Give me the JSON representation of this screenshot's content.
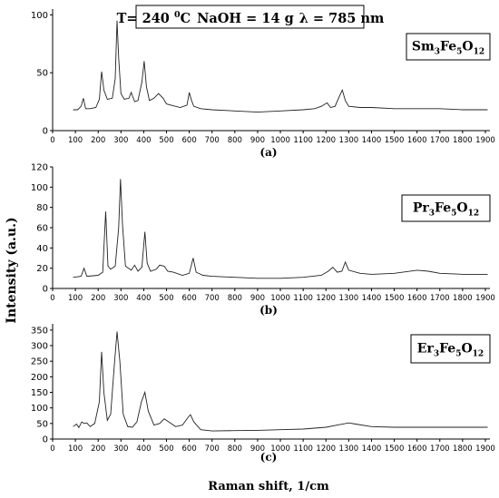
{
  "figure": {
    "conditions": {
      "temp_prefix": "T= 240 ",
      "temp_sup": "0",
      "temp_unit": "C",
      "naoh": "NaOH = 14 g",
      "lambda": "λ = 785 nm"
    },
    "y_label": "Intensity (a.u.)",
    "x_label": "Raman shift, 1/cm"
  },
  "chart_data": [
    {
      "type": "line",
      "panel_label": "(a)",
      "compound": {
        "parts": [
          "Sm",
          "3",
          "Fe",
          "5",
          "O",
          "12"
        ]
      },
      "xlim": [
        0,
        1920
      ],
      "ylim": [
        0,
        105
      ],
      "x_ticks": [
        0,
        100,
        200,
        300,
        400,
        500,
        600,
        700,
        800,
        900,
        1000,
        1100,
        1200,
        1300,
        1400,
        1500,
        1600,
        1700,
        1800,
        1900
      ],
      "y_ticks": [
        0,
        50,
        100
      ],
      "x": [
        90,
        110,
        125,
        135,
        145,
        165,
        190,
        205,
        215,
        225,
        240,
        262,
        275,
        283,
        290,
        300,
        315,
        335,
        345,
        360,
        375,
        392,
        402,
        412,
        425,
        445,
        465,
        485,
        500,
        520,
        560,
        590,
        600,
        610,
        620,
        650,
        700,
        800,
        900,
        1000,
        1100,
        1150,
        1180,
        1205,
        1220,
        1240,
        1260,
        1272,
        1285,
        1300,
        1350,
        1400,
        1500,
        1600,
        1700,
        1800,
        1910
      ],
      "values": [
        18,
        18,
        21,
        28,
        19,
        19,
        20,
        27,
        51,
        35,
        27,
        28,
        45,
        95,
        63,
        32,
        27,
        28,
        33,
        25,
        26,
        42,
        60,
        38,
        26,
        28,
        32,
        28,
        23,
        22,
        20,
        22,
        33,
        26,
        21,
        19,
        18,
        17,
        16,
        17,
        18,
        19,
        21,
        24,
        20,
        21,
        30,
        35,
        26,
        21,
        20,
        20,
        19,
        19,
        19,
        18,
        18
      ]
    },
    {
      "type": "line",
      "panel_label": "(b)",
      "compound": {
        "parts": [
          "Pr",
          "3",
          "Fe",
          "5",
          "O",
          "12"
        ]
      },
      "xlim": [
        0,
        1920
      ],
      "ylim": [
        0,
        120
      ],
      "x_ticks": [
        0,
        100,
        200,
        300,
        400,
        500,
        600,
        700,
        800,
        900,
        1000,
        1100,
        1200,
        1300,
        1400,
        1500,
        1600,
        1700,
        1800,
        1900
      ],
      "y_ticks": [
        0,
        20,
        40,
        60,
        80,
        100,
        120
      ],
      "x": [
        90,
        125,
        138,
        150,
        200,
        220,
        233,
        243,
        255,
        275,
        290,
        298,
        307,
        320,
        345,
        360,
        375,
        392,
        405,
        415,
        430,
        455,
        470,
        490,
        505,
        530,
        570,
        600,
        617,
        630,
        660,
        700,
        800,
        900,
        1000,
        1100,
        1180,
        1210,
        1230,
        1250,
        1270,
        1285,
        1300,
        1350,
        1400,
        1500,
        1600,
        1650,
        1700,
        1800,
        1910
      ],
      "values": [
        11,
        12,
        20,
        12,
        13,
        16,
        76,
        22,
        19,
        22,
        60,
        108,
        62,
        22,
        18,
        23,
        17,
        21,
        56,
        25,
        17,
        19,
        23,
        22,
        17,
        16,
        13,
        15,
        30,
        16,
        13,
        12,
        11,
        10,
        10,
        11,
        13,
        17,
        21,
        16,
        17,
        26,
        18,
        15,
        14,
        15,
        18,
        17,
        15,
        14,
        14
      ]
    },
    {
      "type": "line",
      "panel_label": "(c)",
      "compound": {
        "parts": [
          "Er",
          "3",
          "Fe",
          "5",
          "O",
          "12"
        ]
      },
      "xlim": [
        0,
        1920
      ],
      "ylim": [
        0,
        370
      ],
      "x_ticks": [
        0,
        100,
        200,
        300,
        400,
        500,
        600,
        700,
        800,
        900,
        1000,
        1100,
        1200,
        1300,
        1400,
        1500,
        1600,
        1700,
        1800,
        1900
      ],
      "y_ticks": [
        0,
        50,
        100,
        150,
        200,
        250,
        300,
        350
      ],
      "x": [
        90,
        105,
        115,
        128,
        138,
        150,
        165,
        185,
        205,
        215,
        225,
        240,
        255,
        270,
        283,
        295,
        310,
        330,
        350,
        370,
        390,
        405,
        420,
        445,
        470,
        490,
        510,
        540,
        570,
        595,
        605,
        620,
        650,
        700,
        800,
        900,
        1000,
        1100,
        1200,
        1250,
        1300,
        1330,
        1400,
        1500,
        1600,
        1700,
        1800,
        1910
      ],
      "values": [
        40,
        48,
        37,
        55,
        50,
        52,
        40,
        50,
        120,
        280,
        150,
        60,
        80,
        230,
        345,
        250,
        80,
        40,
        38,
        55,
        120,
        150,
        90,
        45,
        50,
        65,
        55,
        40,
        45,
        70,
        78,
        55,
        30,
        26,
        27,
        28,
        30,
        32,
        38,
        45,
        52,
        48,
        40,
        38,
        38,
        38,
        38,
        38
      ]
    }
  ]
}
